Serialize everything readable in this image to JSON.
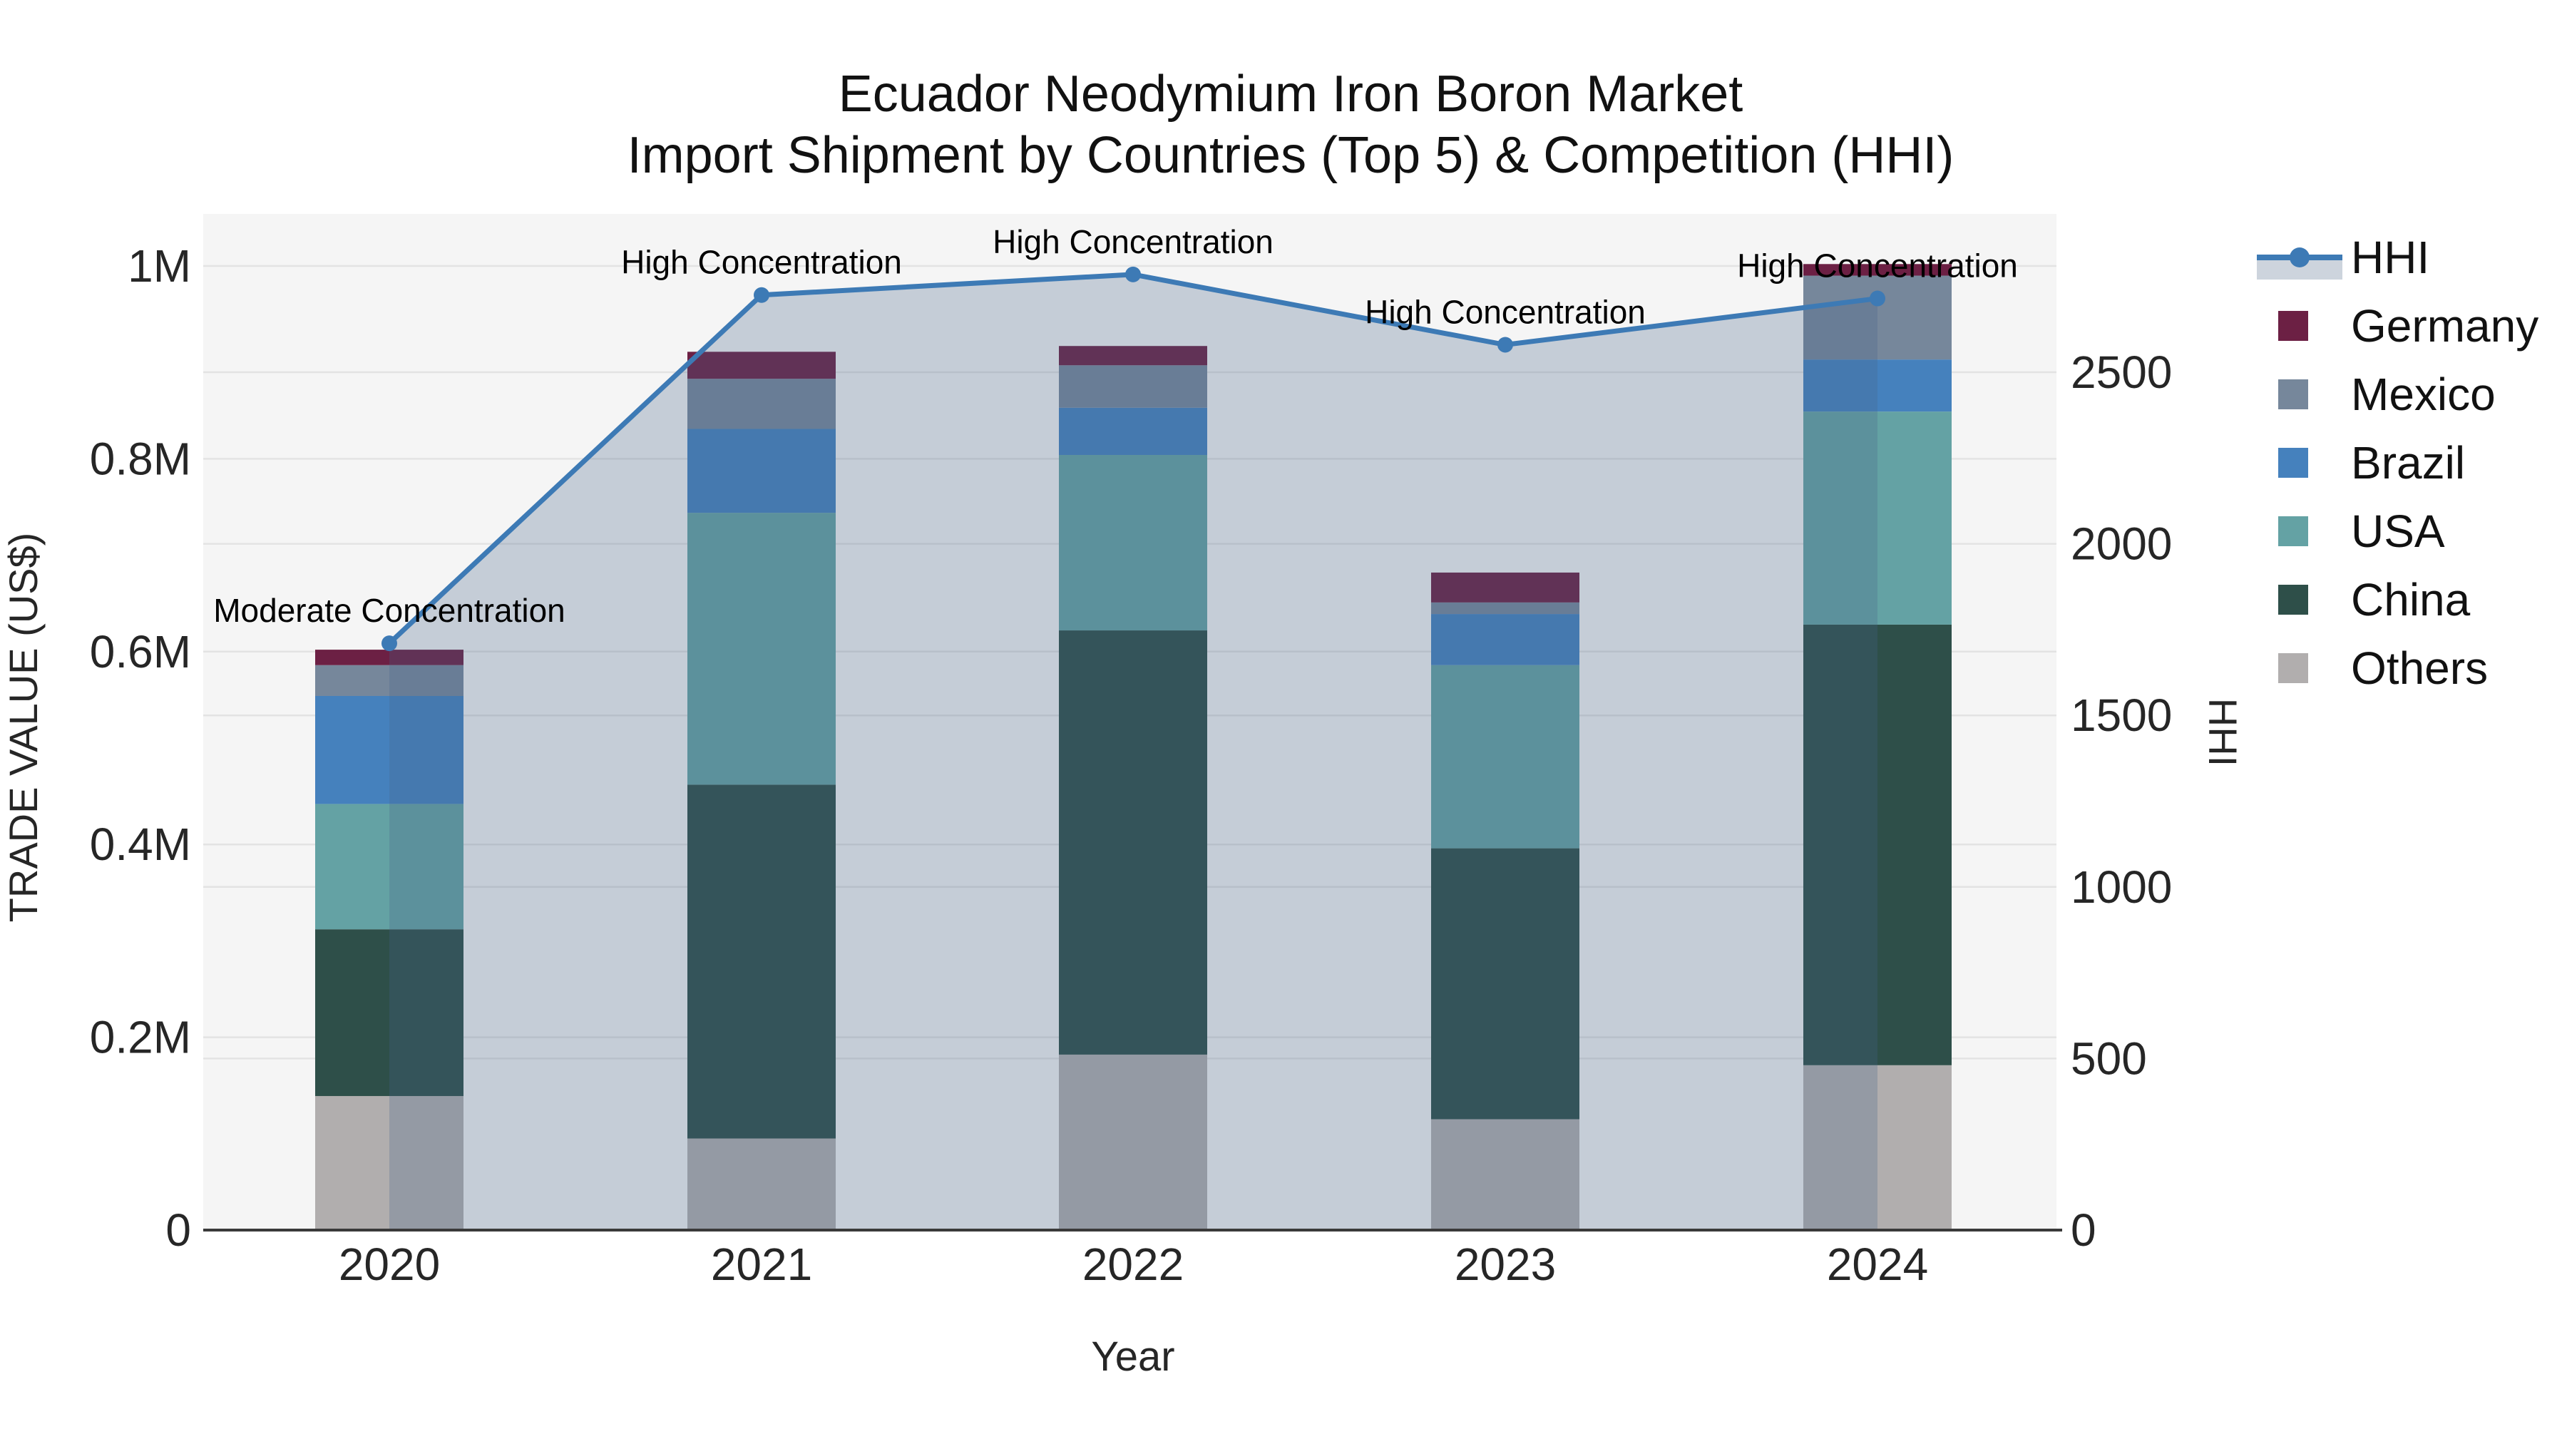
{
  "title": {
    "line1": "Ecuador Neodymium Iron Boron Market",
    "line2": "Import Shipment by Countries (Top 5) & Competition (HHI)"
  },
  "axes": {
    "y_left": {
      "title": "TRADE VALUE (US$)",
      "tick_labels": [
        "0",
        "0.2M",
        "0.4M",
        "0.6M",
        "0.8M",
        "1M"
      ],
      "tick_values": [
        0,
        200000,
        400000,
        600000,
        800000,
        1000000
      ]
    },
    "y_right": {
      "title": "HHI",
      "tick_labels": [
        "0",
        "500",
        "1000",
        "1500",
        "2000",
        "2500"
      ],
      "tick_values": [
        0,
        500,
        1000,
        1500,
        2000,
        2500
      ]
    },
    "x": {
      "title": "Year",
      "categories": [
        "2020",
        "2021",
        "2022",
        "2023",
        "2024"
      ]
    }
  },
  "legend": {
    "items": [
      {
        "label": "HHI",
        "type": "line",
        "color": "#3d7ab5"
      },
      {
        "label": "Germany",
        "type": "swatch",
        "color": "#6c2044"
      },
      {
        "label": "Mexico",
        "type": "swatch",
        "color": "#76879b"
      },
      {
        "label": "Brazil",
        "type": "swatch",
        "color": "#4581bd"
      },
      {
        "label": "USA",
        "type": "swatch",
        "color": "#64a2a4"
      },
      {
        "label": "China",
        "type": "swatch",
        "color": "#2e4f49"
      },
      {
        "label": "Others",
        "type": "swatch",
        "color": "#b1aeae"
      }
    ]
  },
  "chart_data": {
    "type": "bar+line",
    "title": "Ecuador Neodymium Iron Boron Market — Import Shipment by Countries (Top 5) & Competition (HHI)",
    "xlabel": "Year",
    "ylabel": "TRADE VALUE (US$)",
    "y2label": "HHI",
    "categories": [
      "2020",
      "2021",
      "2022",
      "2023",
      "2024"
    ],
    "ylim": [
      0,
      1054000
    ],
    "y2lim": [
      0,
      2960
    ],
    "grid": true,
    "legend_position": "right",
    "bar_series": [
      {
        "name": "Others",
        "color": "#b1aeae",
        "values": [
          139000,
          95000,
          182000,
          115000,
          171000
        ]
      },
      {
        "name": "China",
        "color": "#2e4f49",
        "values": [
          173000,
          367000,
          440000,
          281000,
          457000
        ]
      },
      {
        "name": "USA",
        "color": "#64a2a4",
        "values": [
          130000,
          282000,
          182000,
          190000,
          221000
        ]
      },
      {
        "name": "Brazil",
        "color": "#4581bd",
        "values": [
          112000,
          87000,
          49000,
          53000,
          54000
        ]
      },
      {
        "name": "Mexico",
        "color": "#76879b",
        "values": [
          32000,
          52000,
          44000,
          12000,
          87000
        ]
      },
      {
        "name": "Germany",
        "color": "#6c2044",
        "values": [
          16000,
          28000,
          20000,
          31000,
          12000
        ]
      }
    ],
    "line_series": {
      "name": "HHI",
      "color": "#3d7ab5",
      "fill_color": "rgba(70,100,135,0.27)",
      "values": [
        1710,
        2725,
        2785,
        2580,
        2715
      ]
    },
    "annotations": [
      {
        "category": "2020",
        "text": "Moderate Concentration"
      },
      {
        "category": "2021",
        "text": "High Concentration"
      },
      {
        "category": "2022",
        "text": "High Concentration"
      },
      {
        "category": "2023",
        "text": "High Concentration"
      },
      {
        "category": "2024",
        "text": "High Concentration"
      }
    ]
  },
  "colors": {
    "plot_background": "#f5f5f5",
    "gridline": "#e3e3e3",
    "axis_line": "#3a3a3a",
    "tick_text": "#262626",
    "title_text": "#111111",
    "annotation_text": "#000000",
    "legend_fill_band": "#cdd4dd"
  }
}
